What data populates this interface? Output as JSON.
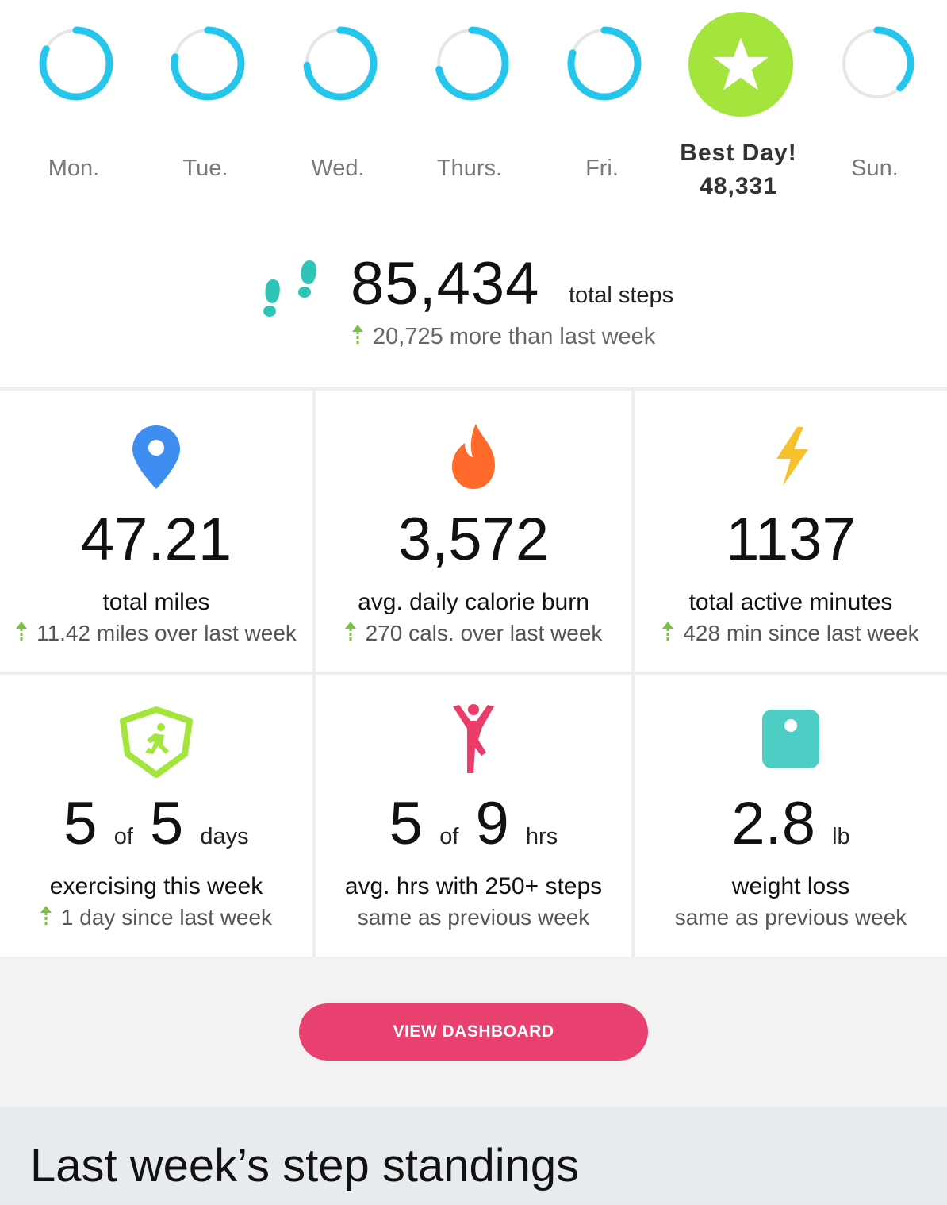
{
  "week": {
    "days": [
      {
        "label": "Mon.",
        "progress": 0.82
      },
      {
        "label": "Tue.",
        "progress": 0.78
      },
      {
        "label": "Wed.",
        "progress": 0.74
      },
      {
        "label": "Thurs.",
        "progress": 0.72
      },
      {
        "label": "Fri.",
        "progress": 0.8
      },
      {
        "label": "Sun.",
        "progress": 0.38
      }
    ],
    "best_day": {
      "title": "Best Day!",
      "value": "48,331",
      "color": "#a4e53d"
    },
    "ring_color": "#26c6ec",
    "ring_track_color": "#e6e6e6"
  },
  "steps": {
    "value": "85,434",
    "unit": "total steps",
    "delta": "20,725 more than last week",
    "icon": "footprints-icon",
    "icon_color": "#2ec4b6"
  },
  "stats": {
    "miles": {
      "value": "47.21",
      "label": "total miles",
      "sub": "11.42 miles over last week",
      "icon": "location-pin-icon"
    },
    "calories": {
      "value": "3,572",
      "label": "avg. daily calorie burn",
      "sub": "270 cals. over last week",
      "icon": "flame-icon"
    },
    "active": {
      "value": "1137",
      "label": "total active minutes",
      "sub": "428 min since last week",
      "icon": "lightning-icon"
    },
    "exercise": {
      "value_a": "5",
      "of": "of",
      "value_b": "5",
      "unit": "days",
      "label": "exercising this week",
      "sub": "1 day since last week",
      "icon": "runner-badge-icon"
    },
    "hourly": {
      "value_a": "5",
      "of": "of",
      "value_b": "9",
      "unit": "hrs",
      "label": "avg. hrs with 250+ steps",
      "sub": "same as previous week",
      "icon": "stretching-person-icon"
    },
    "weight": {
      "value": "2.8",
      "unit": "lb",
      "label": "weight loss",
      "sub": "same as previous week",
      "icon": "scale-icon"
    }
  },
  "up_arrow_color": "#7ac143",
  "dashboard_button": {
    "label": "VIEW DASHBOARD",
    "color": "#e8406f"
  },
  "standings": {
    "title": "Last week’s step standings"
  }
}
